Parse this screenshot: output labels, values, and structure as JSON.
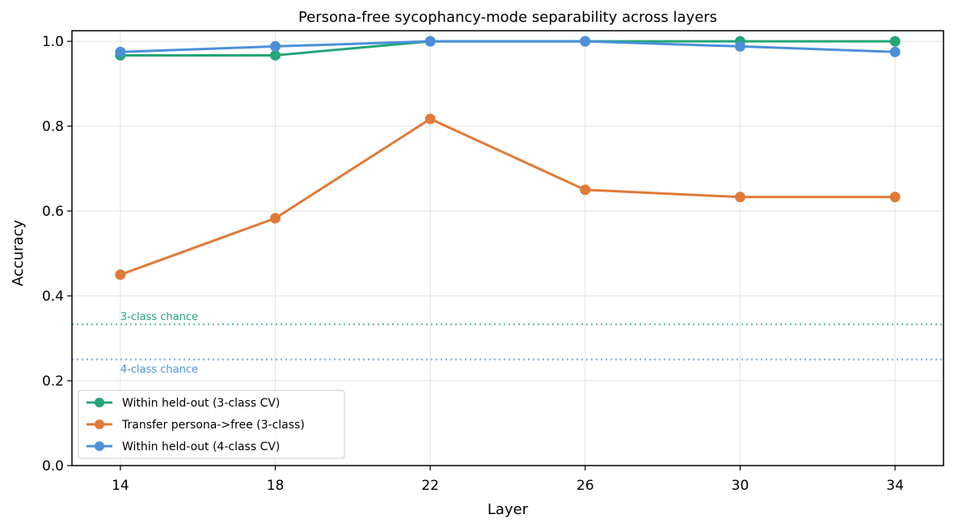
{
  "chart_data": {
    "type": "line",
    "title": "Persona-free sycophancy-mode separability across layers",
    "xlabel": "Layer",
    "ylabel": "Accuracy",
    "x": [
      14,
      18,
      22,
      26,
      30,
      34
    ],
    "xticks": [
      "14",
      "18",
      "22",
      "26",
      "30",
      "34"
    ],
    "xlim": [
      12.75,
      35.25
    ],
    "ylim": [
      0,
      1.025
    ],
    "yticks": [
      "0.0",
      "0.2",
      "0.4",
      "0.6",
      "0.8",
      "1.0"
    ],
    "grid": true,
    "legend_position": "lower-left",
    "series": [
      {
        "name": "Within held-out (3-class CV)",
        "color": "#23a675",
        "values": [
          0.967,
          0.967,
          1.0,
          1.0,
          1.0,
          1.0
        ]
      },
      {
        "name": "Transfer persona->free (3-class)",
        "color": "#e07a37",
        "values": [
          0.45,
          0.583,
          0.817,
          0.65,
          0.633,
          0.633
        ]
      },
      {
        "name": "Within held-out (4-class CV)",
        "color": "#4a90d9",
        "values": [
          0.975,
          0.988,
          1.0,
          1.0,
          0.988,
          0.975
        ]
      }
    ],
    "reference_lines": [
      {
        "label": "3-class chance",
        "value": 0.333,
        "color": "#23a675"
      },
      {
        "label": "4-class chance",
        "value": 0.25,
        "color": "#4a90d9"
      }
    ]
  }
}
